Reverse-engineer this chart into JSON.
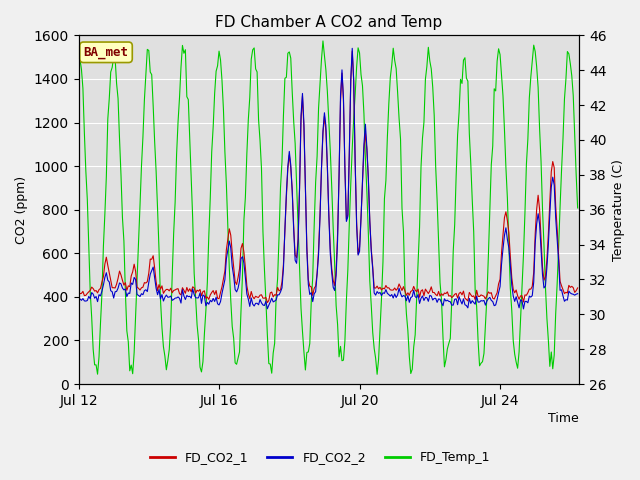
{
  "title": "FD Chamber A CO2 and Temp",
  "xlabel": "Time",
  "ylabel_left": "CO2 (ppm)",
  "ylabel_right": "Temperature (C)",
  "ylim_left": [
    0,
    1600
  ],
  "ylim_right": [
    26,
    46
  ],
  "yticks_left": [
    0,
    200,
    400,
    600,
    800,
    1000,
    1200,
    1400,
    1600
  ],
  "yticks_right": [
    26,
    28,
    30,
    32,
    34,
    36,
    38,
    40,
    42,
    44,
    46
  ],
  "color_co2_1": "#cc0000",
  "color_co2_2": "#0000cc",
  "color_temp": "#00cc00",
  "legend_labels": [
    "FD_CO2_1",
    "FD_CO2_2",
    "FD_Temp_1"
  ],
  "annotation_text": "BA_met",
  "fig_bg_color": "#f0f0f0",
  "plot_bg_color": "#e0e0e0",
  "grid_color": "#ffffff",
  "title_fontsize": 11,
  "axis_fontsize": 9,
  "legend_fontsize": 9,
  "linewidth": 0.8
}
